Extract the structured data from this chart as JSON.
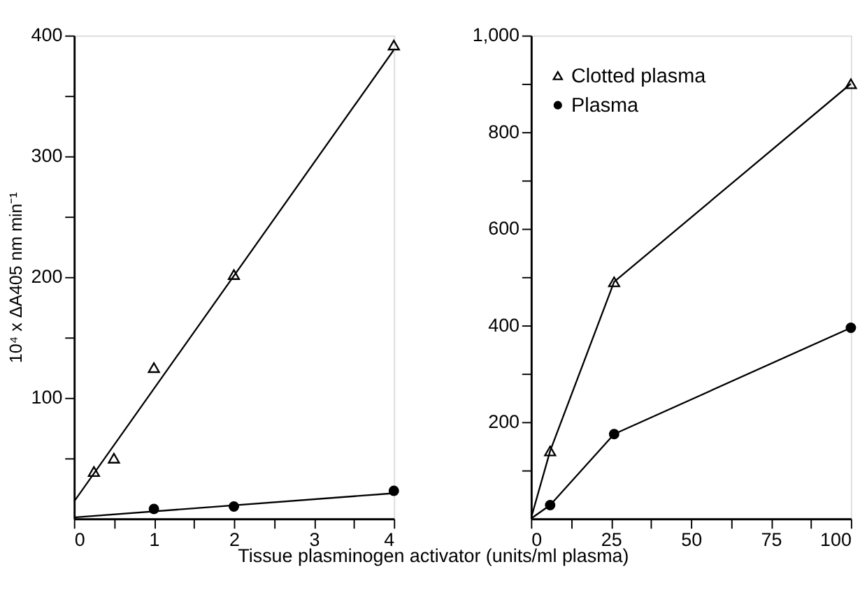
{
  "chart_data": [
    {
      "type": "scatter",
      "xlabel": "Tissue plasminogen activator (units/ml plasma)",
      "ylabel": "10⁴ x ΔA405 nm min⁻¹",
      "xlim": [
        0,
        4
      ],
      "ylim": [
        0,
        400
      ],
      "xticks": [
        0,
        {
          "value": 0.5,
          "label": null
        },
        1,
        {
          "value": 1.5,
          "label": null
        },
        2,
        {
          "value": 2.5,
          "label": null
        },
        3,
        {
          "value": 3.5,
          "label": null
        },
        4
      ],
      "yticks": [
        {
          "value": 50,
          "label": null
        },
        100,
        {
          "value": 150,
          "label": null
        },
        200,
        {
          "value": 250,
          "label": null
        },
        300,
        {
          "value": 350,
          "label": null
        },
        400
      ],
      "grid": false,
      "legend": false,
      "line_style": "solid",
      "series": [
        {
          "type": "line",
          "marker": "none",
          "color": "#000000",
          "x": [
            0,
            4
          ],
          "values": [
            14,
            388
          ]
        },
        {
          "type": "line",
          "marker": "none",
          "color": "#000000",
          "x": [
            0,
            4
          ],
          "values": [
            1,
            21
          ]
        },
        {
          "marker": "triangle",
          "color": "#000000",
          "x": [
            0.25,
            0.5,
            1,
            2,
            4
          ],
          "values": [
            39,
            50,
            125,
            202,
            392
          ]
        },
        {
          "marker": "circle",
          "color": "#000000",
          "x": [
            1,
            2,
            4
          ],
          "values": [
            8,
            10,
            23
          ]
        }
      ]
    },
    {
      "type": "line",
      "xlim": [
        0,
        100
      ],
      "ylim": [
        0,
        1000
      ],
      "xticks": [
        0,
        {
          "value": 12.5,
          "label": null
        },
        25,
        {
          "value": 37.5,
          "label": null
        },
        50,
        {
          "value": 62.5,
          "label": null
        },
        75,
        {
          "value": 87.5,
          "label": null
        },
        100
      ],
      "yticks": [
        {
          "value": 100,
          "label": null
        },
        200,
        {
          "value": 300,
          "label": null
        },
        400,
        {
          "value": 500,
          "label": null
        },
        600,
        {
          "value": 700,
          "label": null
        },
        800,
        {
          "value": 900,
          "label": null
        },
        {
          "value": 1000,
          "label": "1,000"
        }
      ],
      "grid": false,
      "legend": "top left",
      "line_style": "solid",
      "series": [
        {
          "marker": "none",
          "color": "#000000",
          "x": [
            0,
            6,
            26,
            100
          ],
          "values": [
            0,
            140,
            490,
            900
          ]
        },
        {
          "marker": "none",
          "color": "#000000",
          "x": [
            0,
            6,
            26,
            100
          ],
          "values": [
            0,
            28,
            175,
            395
          ]
        },
        {
          "type": "scatter",
          "name": "Clotted plasma",
          "marker": "triangle",
          "color": "#000000",
          "x": [
            6,
            26,
            100
          ],
          "values": [
            140,
            490,
            900
          ]
        },
        {
          "type": "scatter",
          "name": "Plasma",
          "marker": "circle",
          "color": "#000000",
          "x": [
            6,
            26,
            100
          ],
          "values": [
            28,
            175,
            395
          ]
        }
      ]
    }
  ]
}
